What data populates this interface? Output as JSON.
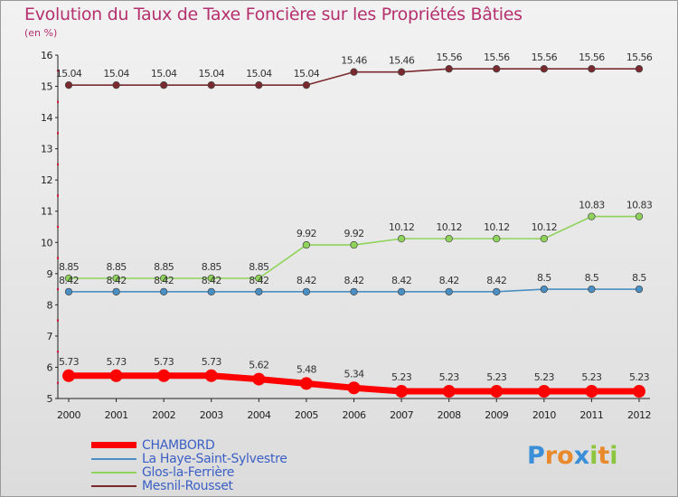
{
  "chart_data": {
    "type": "line",
    "title": "Evolution du Taux de Taxe Foncière sur les Propriétés Bâties",
    "ylabel": "(en %)",
    "xlabel": "",
    "x": [
      "2000",
      "2001",
      "2002",
      "2003",
      "2004",
      "2005",
      "2006",
      "2007",
      "2008",
      "2009",
      "2010",
      "2011",
      "2012"
    ],
    "ylim": [
      5,
      16
    ],
    "yticks": [
      5,
      6,
      7,
      8,
      9,
      10,
      11,
      12,
      13,
      14,
      15,
      16
    ],
    "series": [
      {
        "name": "Mesnil-Rousset",
        "color": "#7a2a2e",
        "values": [
          15.04,
          15.04,
          15.04,
          15.04,
          15.04,
          15.04,
          15.46,
          15.46,
          15.56,
          15.56,
          15.56,
          15.56,
          15.56
        ],
        "labels": [
          "15.04",
          "15.04",
          "15.04",
          "15.04",
          "15.04",
          "15.04",
          "15.46",
          "15.46",
          "15.56",
          "15.56",
          "15.56",
          "15.56",
          "15.56"
        ]
      },
      {
        "name": "Glos-la-Ferrière",
        "color": "#8fd35a",
        "values": [
          8.85,
          8.85,
          8.85,
          8.85,
          8.85,
          9.92,
          9.92,
          10.12,
          10.12,
          10.12,
          10.12,
          10.83,
          10.83
        ],
        "labels": [
          "8.85",
          "8.85",
          "8.85",
          "8.85",
          "8.85",
          "9.92",
          "9.92",
          "10.12",
          "10.12",
          "10.12",
          "10.12",
          "10.83",
          "10.83"
        ]
      },
      {
        "name": "La Haye-Saint-Sylvestre",
        "color": "#4a8fc4",
        "values": [
          8.42,
          8.42,
          8.42,
          8.42,
          8.42,
          8.42,
          8.42,
          8.42,
          8.42,
          8.42,
          8.5,
          8.5,
          8.5
        ],
        "labels": [
          "8.42",
          "8.42",
          "8.42",
          "8.42",
          "8.42",
          "8.42",
          "8.42",
          "8.42",
          "8.42",
          "8.42",
          "8.5",
          "8.5",
          "8.5"
        ]
      },
      {
        "name": "CHAMBORD",
        "color": "#ff0000",
        "values": [
          5.73,
          5.73,
          5.73,
          5.73,
          5.62,
          5.48,
          5.34,
          5.23,
          5.23,
          5.23,
          5.23,
          5.23,
          5.23
        ],
        "labels": [
          "5.73",
          "5.73",
          "5.73",
          "5.73",
          "5.62",
          "5.48",
          "5.34",
          "5.23",
          "5.23",
          "5.23",
          "5.23",
          "5.23",
          "5.23"
        ]
      }
    ],
    "legend": [
      {
        "name": "CHAMBORD",
        "color": "#ff0000",
        "thick": true
      },
      {
        "name": "La Haye-Saint-Sylvestre",
        "color": "#4a8fc4",
        "thick": false
      },
      {
        "name": "Glos-la-Ferrière",
        "color": "#8fd35a",
        "thick": false
      },
      {
        "name": "Mesnil-Rousset",
        "color": "#7a2a2e",
        "thick": false
      }
    ]
  },
  "brand": {
    "letters": [
      "P",
      "r",
      "o",
      "x",
      "i",
      "t",
      "i"
    ],
    "colors": [
      "#3a8fd8",
      "#e8892b",
      "#e8892b",
      "#3a8fd8",
      "#8cc63f",
      "#e8892b",
      "#8cc63f"
    ]
  }
}
